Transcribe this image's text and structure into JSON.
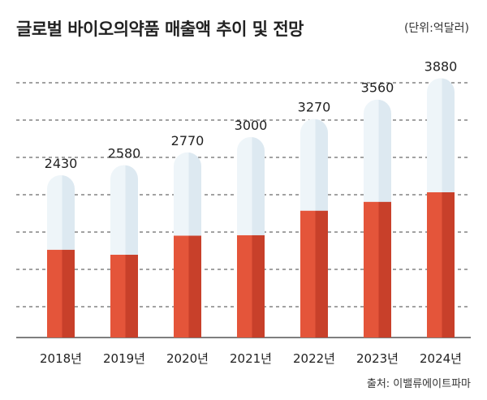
{
  "title": "글로벌 바이오의약품 매출액 추이 및 전망",
  "unit": "(단위:억달러)",
  "source": "출처: 이밸류에이트파마",
  "chart_data": {
    "type": "bar",
    "categories": [
      "2018년",
      "2019년",
      "2020년",
      "2021년",
      "2022년",
      "2023년",
      "2024년"
    ],
    "values": [
      2430,
      2580,
      2770,
      3000,
      3270,
      3560,
      3880
    ],
    "value_labels": [
      "2430",
      "2580",
      "2770",
      "3000",
      "3270",
      "3560",
      "3880"
    ],
    "fill_levels": [
      0.54,
      0.48,
      0.55,
      0.51,
      0.58,
      0.57,
      0.56
    ],
    "ylim": [
      0,
      4200
    ],
    "grid": true,
    "colors": {
      "fill": "#e4553a",
      "fill_dark": "#c8402a",
      "capsule": "#dde9f1",
      "capsule_light": "#eef5f9",
      "grid": "#444444",
      "text": "#222222"
    }
  }
}
